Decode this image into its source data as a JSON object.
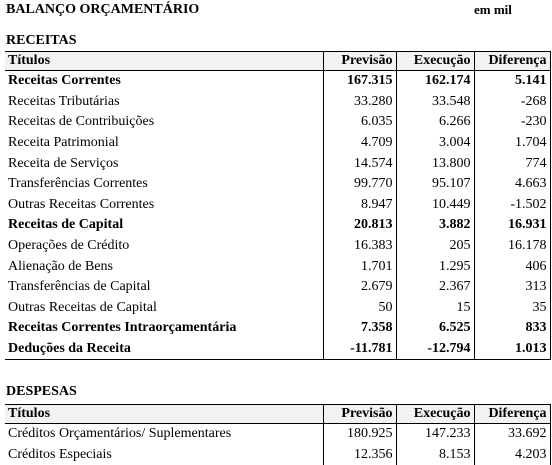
{
  "header": {
    "title": "BALANÇO ORÇAMENTÁRIO",
    "unit": "em mil"
  },
  "receitas": {
    "section_title": "RECEITAS",
    "columns": [
      "Títulos",
      "Previsão",
      "Execução",
      "Diferença"
    ],
    "rows": [
      {
        "label": "Receitas Correntes",
        "previsao": "167.315",
        "execucao": "162.174",
        "diferenca": "5.141",
        "bold": true
      },
      {
        "label": "Receitas Tributárias",
        "previsao": "33.280",
        "execucao": "33.548",
        "diferenca": "-268",
        "bold": false
      },
      {
        "label": "Receitas de Contribuições",
        "previsao": "6.035",
        "execucao": "6.266",
        "diferenca": "-230",
        "bold": false
      },
      {
        "label": "Receita Patrimonial",
        "previsao": "4.709",
        "execucao": "3.004",
        "diferenca": "1.704",
        "bold": false
      },
      {
        "label": "Receita de Serviços",
        "previsao": "14.574",
        "execucao": "13.800",
        "diferenca": "774",
        "bold": false
      },
      {
        "label": "Transferências Correntes",
        "previsao": "99.770",
        "execucao": "95.107",
        "diferenca": "4.663",
        "bold": false
      },
      {
        "label": "Outras Receitas Correntes",
        "previsao": "8.947",
        "execucao": "10.449",
        "diferenca": "-1.502",
        "bold": false
      },
      {
        "label": "Receitas de Capital",
        "previsao": "20.813",
        "execucao": "3.882",
        "diferenca": "16.931",
        "bold": true
      },
      {
        "label": "Operações de Crédito",
        "previsao": "16.383",
        "execucao": "205",
        "diferenca": "16.178",
        "bold": false
      },
      {
        "label": "Alienação de Bens",
        "previsao": "1.701",
        "execucao": "1.295",
        "diferenca": "406",
        "bold": false
      },
      {
        "label": "Transferências de Capital",
        "previsao": "2.679",
        "execucao": "2.367",
        "diferenca": "313",
        "bold": false
      },
      {
        "label": "Outras Receitas de Capital",
        "previsao": "50",
        "execucao": "15",
        "diferenca": "35",
        "bold": false
      },
      {
        "label": "Receitas Correntes Intraorçamentária",
        "previsao": "7.358",
        "execucao": "6.525",
        "diferenca": "833",
        "bold": true
      },
      {
        "label": "Deduções da Receita",
        "previsao": "-11.781",
        "execucao": "-12.794",
        "diferenca": "1.013",
        "bold": true
      }
    ]
  },
  "despesas": {
    "section_title": "DESPESAS",
    "columns": [
      "Títulos",
      "Previsão",
      "Execução",
      "Diferença"
    ],
    "rows": [
      {
        "label": "Créditos Orçamentários/ Suplementares",
        "previsao": "180.925",
        "execucao": "147.233",
        "diferenca": "33.692",
        "bold": false
      },
      {
        "label": "Créditos Especiais",
        "previsao": "12.356",
        "execucao": "8.153",
        "diferenca": "4.203",
        "bold": false
      }
    ]
  }
}
